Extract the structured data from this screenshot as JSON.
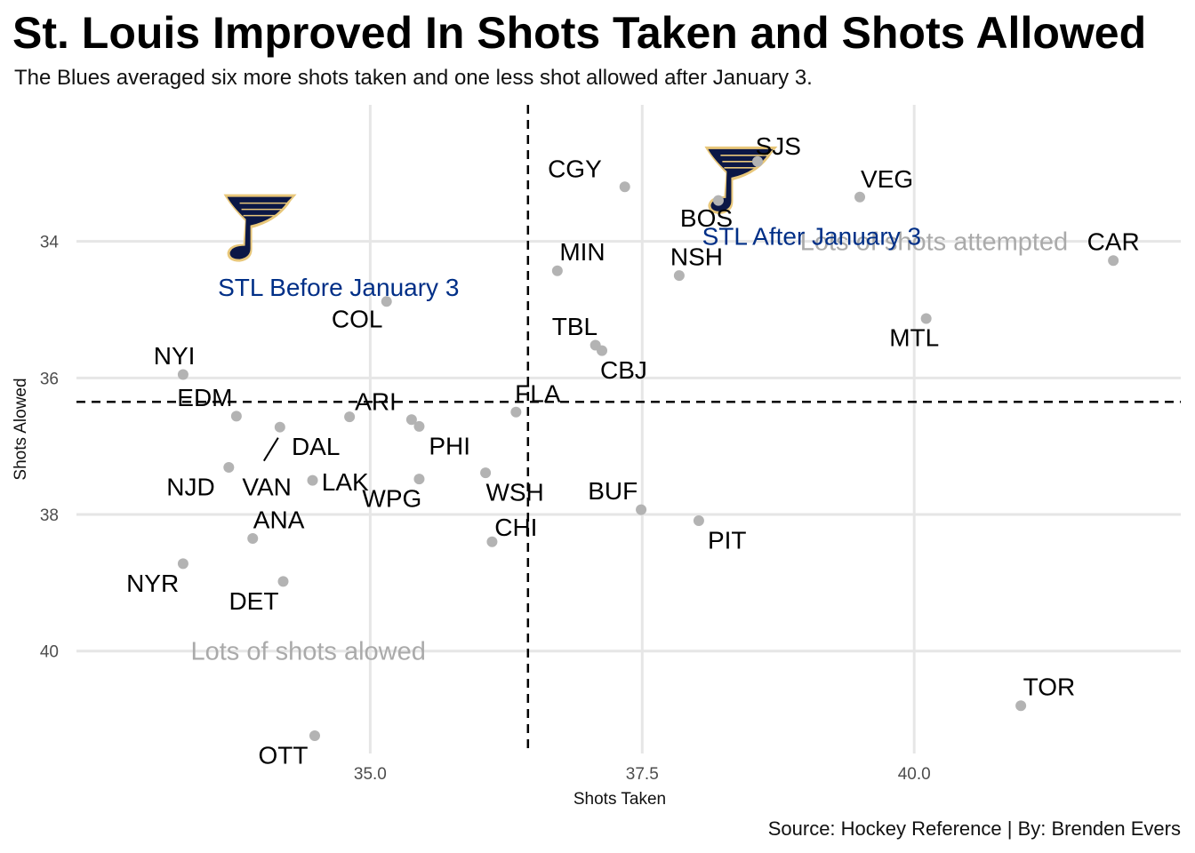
{
  "title": "St. Louis Improved In Shots Taken and Shots Allowed",
  "subtitle": "The Blues averaged six more shots taken and one less shot allowed after January 3.",
  "source": "Source: Hockey Reference | By: Brenden Evers",
  "colors": {
    "point": "#b3b3b3",
    "label": "#000000",
    "stl_label": "#002F87",
    "quadrant_label": "#aaaaaa",
    "grid": "#e6e6e6",
    "ref_line": "#000000",
    "logo_navy": "#0b1746",
    "logo_gold": "#e8c77a"
  },
  "chart_data": {
    "type": "scatter",
    "xlabel": "Shots Taken",
    "ylabel": "Shots Alowed",
    "xlim": [
      32.3,
      42.45
    ],
    "ylim": [
      32.0,
      41.5
    ],
    "y_reversed": true,
    "x_ticks": [
      "35.0",
      "37.5",
      "40.0"
    ],
    "y_ticks": [
      "34",
      "36",
      "38",
      "40"
    ],
    "grid": true,
    "reference_lines": {
      "x": 36.45,
      "y": 36.35
    },
    "points": [
      {
        "team": "SJS",
        "x": 38.56,
        "y": 32.83
      },
      {
        "team": "CGY",
        "x": 37.34,
        "y": 33.2
      },
      {
        "team": "VEG",
        "x": 39.5,
        "y": 33.35
      },
      {
        "team": "BOS",
        "x": 38.2,
        "y": 33.4
      },
      {
        "team": "MIN",
        "x": 36.72,
        "y": 34.43
      },
      {
        "team": "NSH",
        "x": 37.84,
        "y": 34.5
      },
      {
        "team": "CAR",
        "x": 41.83,
        "y": 34.28
      },
      {
        "team": "COL",
        "x": 35.15,
        "y": 34.88
      },
      {
        "team": "MTL",
        "x": 40.11,
        "y": 35.13
      },
      {
        "team": "TBL",
        "x": 37.07,
        "y": 35.52
      },
      {
        "team": "CBJ",
        "x": 37.13,
        "y": 35.6
      },
      {
        "team": "NYI",
        "x": 33.28,
        "y": 35.95
      },
      {
        "team": "FLA",
        "x": 36.34,
        "y": 36.5
      },
      {
        "team": "EDM",
        "x": 33.77,
        "y": 36.56
      },
      {
        "team": "ARI",
        "x": 34.81,
        "y": 36.57
      },
      {
        "team": "PHI",
        "x": 35.38,
        "y": 36.61
      },
      {
        "team": "PHI",
        "x": 35.45,
        "y": 36.71
      },
      {
        "team": "DAL",
        "x": 34.17,
        "y": 36.72
      },
      {
        "team": "NJD",
        "x": 33.7,
        "y": 37.31
      },
      {
        "team": "WSH",
        "x": 36.06,
        "y": 37.39
      },
      {
        "team": "LAK",
        "x": 34.47,
        "y": 37.5
      },
      {
        "team": "WPG",
        "x": 35.45,
        "y": 37.48
      },
      {
        "team": "BUF",
        "x": 37.49,
        "y": 37.93
      },
      {
        "team": "PIT",
        "x": 38.02,
        "y": 38.09
      },
      {
        "team": "ANA",
        "x": 33.92,
        "y": 38.35
      },
      {
        "team": "CHI",
        "x": 36.12,
        "y": 38.4
      },
      {
        "team": "NYR",
        "x": 33.28,
        "y": 38.72
      },
      {
        "team": "DET",
        "x": 34.2,
        "y": 38.98
      },
      {
        "team": "TOR",
        "x": 40.98,
        "y": 40.8
      },
      {
        "team": "OTT",
        "x": 34.49,
        "y": 41.24
      }
    ],
    "labels": [
      {
        "text": "SJS",
        "x": 38.75,
        "y": 32.6
      },
      {
        "text": "CGY",
        "x": 36.88,
        "y": 32.93
      },
      {
        "text": "VEG",
        "x": 39.75,
        "y": 33.08
      },
      {
        "text": "BOS",
        "x": 38.09,
        "y": 33.65
      },
      {
        "text": "MIN",
        "x": 36.95,
        "y": 34.15
      },
      {
        "text": "NSH",
        "x": 38.0,
        "y": 34.22
      },
      {
        "text": "CAR",
        "x": 41.83,
        "y": 34.0
      },
      {
        "text": "COL",
        "x": 34.88,
        "y": 35.13
      },
      {
        "text": "MTL",
        "x": 40.0,
        "y": 35.4
      },
      {
        "text": "TBL",
        "x": 36.88,
        "y": 35.24
      },
      {
        "text": "CBJ",
        "x": 37.33,
        "y": 35.88
      },
      {
        "text": "NYI",
        "x": 33.2,
        "y": 35.67
      },
      {
        "text": "FLA",
        "x": 36.54,
        "y": 36.22
      },
      {
        "text": "EDM",
        "x": 33.48,
        "y": 36.28
      },
      {
        "text": "ARI",
        "x": 35.05,
        "y": 36.34
      },
      {
        "text": "PHI",
        "x": 35.73,
        "y": 36.99
      },
      {
        "text": "DAL",
        "x": 34.5,
        "y": 37.0
      },
      {
        "text": "VAN",
        "x": 34.05,
        "y": 37.59
      },
      {
        "text": "NJD",
        "x": 33.35,
        "y": 37.59
      },
      {
        "text": "LAK",
        "x": 34.77,
        "y": 37.52
      },
      {
        "text": "WPG",
        "x": 35.2,
        "y": 37.76
      },
      {
        "text": "WSH",
        "x": 36.33,
        "y": 37.67
      },
      {
        "text": "BUF",
        "x": 37.23,
        "y": 37.65
      },
      {
        "text": "PIT",
        "x": 38.28,
        "y": 38.37
      },
      {
        "text": "ANA",
        "x": 34.16,
        "y": 38.07
      },
      {
        "text": "CHI",
        "x": 36.34,
        "y": 38.18
      },
      {
        "text": "NYR",
        "x": 33.0,
        "y": 39.0
      },
      {
        "text": "DET",
        "x": 33.93,
        "y": 39.26
      },
      {
        "text": "TOR",
        "x": 41.24,
        "y": 40.52
      },
      {
        "text": "OTT",
        "x": 34.2,
        "y": 41.52
      }
    ],
    "stl_annotations": [
      {
        "text": "STL Before January 3",
        "x": 33.6,
        "y": 34.67
      },
      {
        "text": "STL After January 3",
        "x": 38.05,
        "y": 33.92
      }
    ],
    "quadrant_labels": [
      {
        "text": "Lots of shots attempted",
        "x": 38.95,
        "y": 34.0
      },
      {
        "text": "Lots of shots alowed",
        "x": 33.35,
        "y": 40.0
      }
    ],
    "logos": [
      {
        "name": "st-louis-blues-logo-before",
        "x": 33.98,
        "y": 33.7
      },
      {
        "name": "st-louis-blues-logo-after",
        "x": 38.4,
        "y": 33.0
      }
    ]
  }
}
